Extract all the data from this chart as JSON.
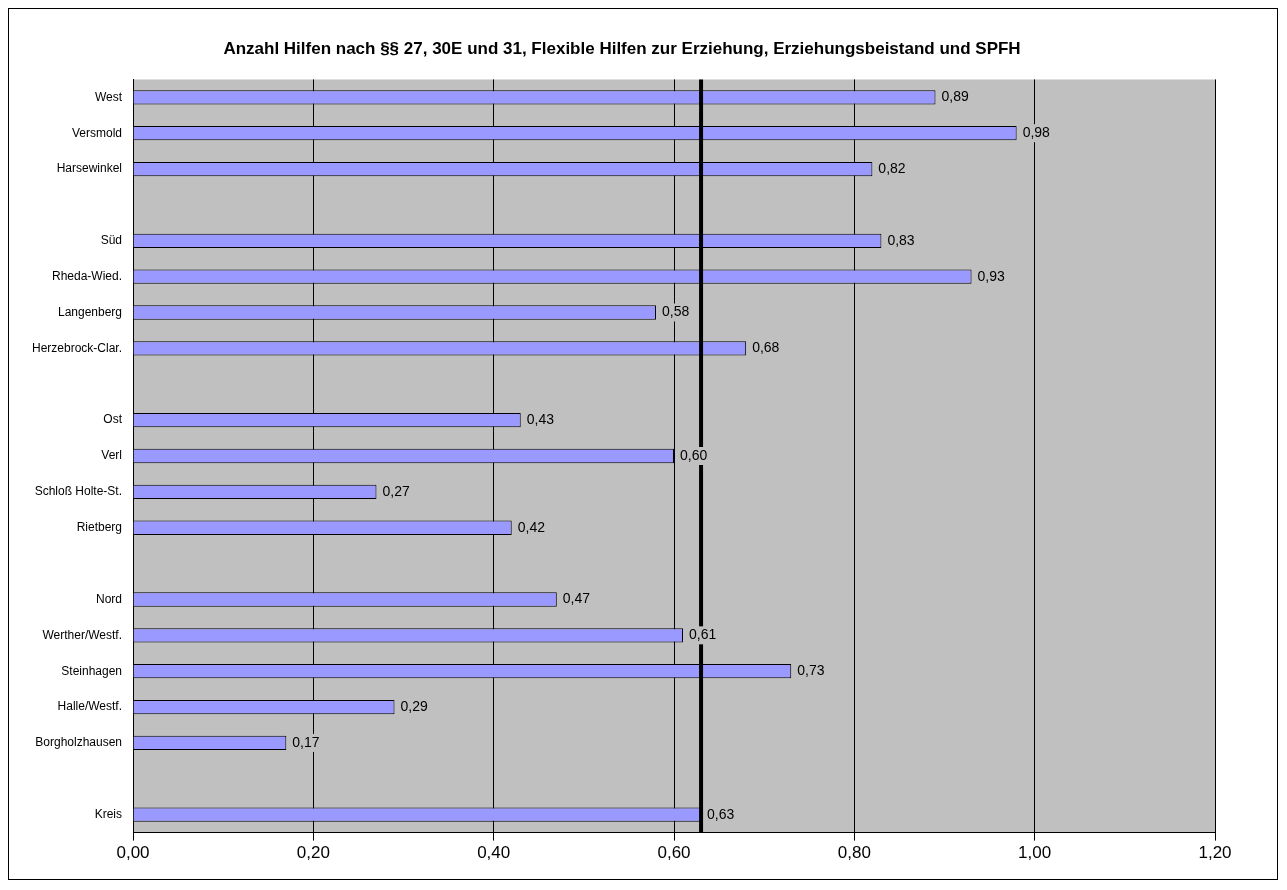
{
  "chart_data": {
    "type": "bar",
    "orientation": "horizontal",
    "title": "Anzahl Hilfen nach §§ 27, 30E und 31, Flexible Hilfen zur Erziehung, Erziehungsbeistand und SPFH",
    "categories": [
      "West",
      "Versmold",
      "Harsewinkel",
      null,
      "Süd",
      "Rheda-Wied.",
      "Langenberg",
      "Herzebrock-Clar.",
      null,
      "Ost",
      "Verl",
      "Schloß Holte-St.",
      "Rietberg",
      null,
      "Nord",
      "Werther/Westf.",
      "Steinhagen",
      "Halle/Westf.",
      "Borgholzhausen",
      null,
      "Kreis"
    ],
    "values": [
      0.89,
      0.98,
      0.82,
      null,
      0.83,
      0.93,
      0.58,
      0.68,
      null,
      0.43,
      0.6,
      0.27,
      0.42,
      null,
      0.47,
      0.61,
      0.73,
      0.29,
      0.17,
      null,
      0.63
    ],
    "value_labels": [
      "0,89",
      "0,98",
      "0,82",
      null,
      "0,83",
      "0,93",
      "0,58",
      "0,68",
      null,
      "0,43",
      "0,60",
      "0,27",
      "0,42",
      null,
      "0,47",
      "0,61",
      "0,73",
      "0,29",
      "0,17",
      null,
      "0,63"
    ],
    "color": "#9999ff",
    "xlim": [
      0,
      1.2
    ],
    "xticks": [
      {
        "value": 0,
        "label": "0,00"
      },
      {
        "value": 0.2,
        "label": "0,20"
      },
      {
        "value": 0.4,
        "label": "0,40"
      },
      {
        "value": 0.6,
        "label": "0,60"
      },
      {
        "value": 0.8,
        "label": "0,80"
      },
      {
        "value": 1.0,
        "label": "1,00"
      },
      {
        "value": 1.2,
        "label": "1,20"
      }
    ],
    "grid": "x",
    "legend": false,
    "ref_lines": [
      {
        "axis": "x",
        "value": 0.63,
        "color": "#000000"
      }
    ]
  }
}
